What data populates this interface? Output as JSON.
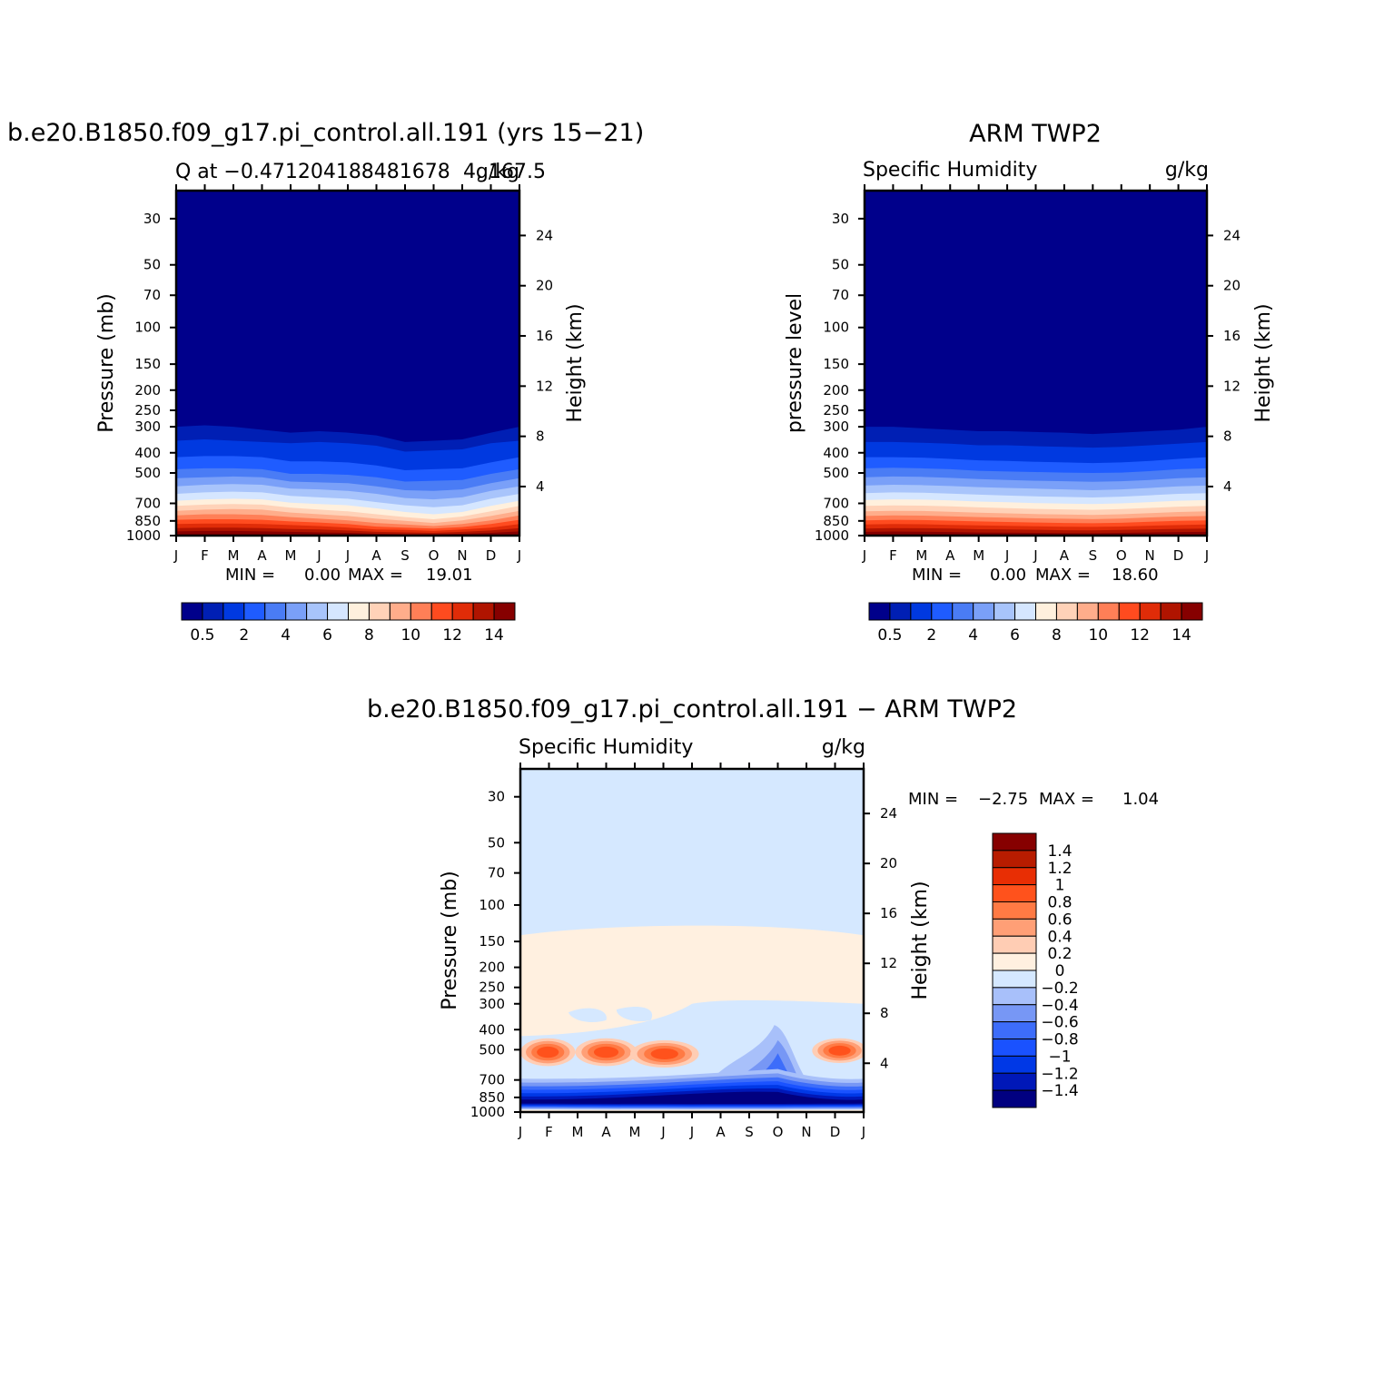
{
  "colors": {
    "absolute": [
      "#00008b",
      "#001fb4",
      "#0039e0",
      "#1f5cff",
      "#4a7cf5",
      "#7aa0f8",
      "#a8c4fb",
      "#d5e6ff",
      "#fff0dd",
      "#ffd2b8",
      "#ffad8b",
      "#ff7f57",
      "#ff4b1f",
      "#e02c08",
      "#b01400",
      "#860000"
    ],
    "difference": [
      "#010080",
      "#0018b8",
      "#0038e6",
      "#1a52ff",
      "#3d6dfa",
      "#7797f5",
      "#a8c0fa",
      "#d5e8ff",
      "#fff0e0",
      "#ffcdb4",
      "#ff9f76",
      "#ff7a44",
      "#ff521c",
      "#e82e04",
      "#b81c00",
      "#860000"
    ]
  },
  "chart_data": [
    {
      "type": "heatmap",
      "title": "b.e20.B1850.f09_g17.pi_control.all.191 (yrs 15−21)",
      "left_string": "Q at −0.471204188481678",
      "center_string": "4, 167.5",
      "right_string": "g/kg",
      "ylabel": "Pressure (mb)",
      "y2label": "Height (km)",
      "x_ticks": [
        "J",
        "F",
        "M",
        "A",
        "M",
        "J",
        "J",
        "A",
        "S",
        "O",
        "N",
        "D",
        "J"
      ],
      "y_ticks": [
        "30",
        "50",
        "70",
        "100",
        "150",
        "200",
        "250",
        "300",
        "400",
        "500",
        "700",
        "850",
        "1000"
      ],
      "y_tick_values": [
        30,
        50,
        70,
        100,
        150,
        200,
        250,
        300,
        400,
        500,
        700,
        850,
        1000
      ],
      "y2_ticks": [
        "24",
        "20",
        "16",
        "12",
        "8",
        "4"
      ],
      "y2_tick_values": [
        24,
        20,
        16,
        12,
        8,
        4
      ],
      "ylim": [
        1000,
        22
      ],
      "y_scale": "log",
      "min_label": "MIN =",
      "min_value": "0.00",
      "max_label": "MAX =",
      "max_value": "19.01",
      "colorbar_labels": [
        "0.5",
        "2",
        "4",
        "6",
        "8",
        "10",
        "12",
        "14"
      ],
      "months": [
        "J",
        "F",
        "M",
        "A",
        "M",
        "J",
        "J",
        "A",
        "S",
        "O",
        "N",
        "D",
        "J"
      ],
      "contour_levels_mb": {
        "0.5": [
          300,
          295,
          300,
          310,
          320,
          315,
          320,
          330,
          355,
          350,
          345,
          320,
          300
        ],
        "1": [
          350,
          345,
          350,
          355,
          360,
          355,
          360,
          370,
          395,
          390,
          385,
          360,
          350
        ],
        "2": [
          420,
          415,
          415,
          420,
          440,
          440,
          445,
          460,
          485,
          480,
          475,
          445,
          420
        ],
        "3": [
          480,
          475,
          475,
          480,
          505,
          505,
          510,
          525,
          550,
          545,
          540,
          505,
          480
        ],
        "4": [
          530,
          525,
          520,
          525,
          550,
          555,
          560,
          580,
          605,
          610,
          600,
          560,
          530
        ],
        "5": [
          580,
          570,
          565,
          570,
          595,
          600,
          610,
          630,
          660,
          670,
          655,
          610,
          580
        ],
        "6": [
          630,
          620,
          615,
          620,
          645,
          655,
          665,
          690,
          715,
          730,
          715,
          665,
          630
        ],
        "7": [
          680,
          670,
          665,
          670,
          695,
          705,
          715,
          740,
          770,
          790,
          770,
          720,
          680
        ],
        "8": [
          720,
          710,
          705,
          710,
          735,
          750,
          765,
          790,
          815,
          835,
          810,
          765,
          720
        ],
        "9": [
          760,
          750,
          745,
          750,
          775,
          790,
          805,
          830,
          850,
          870,
          845,
          805,
          760
        ],
        "10": [
          800,
          790,
          790,
          795,
          815,
          830,
          845,
          870,
          885,
          900,
          880,
          845,
          800
        ],
        "11": [
          840,
          835,
          835,
          840,
          855,
          865,
          880,
          905,
          915,
          925,
          910,
          880,
          840
        ],
        "12": [
          880,
          875,
          875,
          880,
          890,
          900,
          915,
          935,
          940,
          950,
          935,
          915,
          880
        ],
        "13": [
          920,
          915,
          915,
          920,
          930,
          935,
          945,
          960,
          965,
          970,
          960,
          945,
          920
        ],
        "14": [
          955,
          950,
          950,
          955,
          960,
          965,
          970,
          980,
          985,
          985,
          980,
          970,
          955
        ]
      }
    },
    {
      "type": "heatmap",
      "title": "ARM TWP2",
      "left_string": "Specific Humidity",
      "right_string": "g/kg",
      "ylabel": "pressure level",
      "y2label": "Height (km)",
      "x_ticks": [
        "J",
        "F",
        "M",
        "A",
        "M",
        "J",
        "J",
        "A",
        "S",
        "O",
        "N",
        "D",
        "J"
      ],
      "y_ticks": [
        "30",
        "50",
        "70",
        "100",
        "150",
        "200",
        "250",
        "300",
        "400",
        "500",
        "700",
        "850",
        "1000"
      ],
      "y_tick_values": [
        30,
        50,
        70,
        100,
        150,
        200,
        250,
        300,
        400,
        500,
        700,
        850,
        1000
      ],
      "y2_ticks": [
        "24",
        "20",
        "16",
        "12",
        "8",
        "4"
      ],
      "y2_tick_values": [
        24,
        20,
        16,
        12,
        8,
        4
      ],
      "ylim": [
        1000,
        22
      ],
      "y_scale": "log",
      "min_label": "MIN =",
      "min_value": "0.00",
      "max_label": "MAX =",
      "max_value": "18.60",
      "colorbar_labels": [
        "0.5",
        "2",
        "4",
        "6",
        "8",
        "10",
        "12",
        "14"
      ],
      "months": [
        "J",
        "F",
        "M",
        "A",
        "M",
        "J",
        "J",
        "A",
        "S",
        "O",
        "N",
        "D",
        "J"
      ],
      "contour_levels_mb": {
        "0.5": [
          300,
          300,
          305,
          310,
          315,
          315,
          318,
          320,
          325,
          320,
          315,
          310,
          300
        ],
        "1": [
          355,
          355,
          358,
          362,
          368,
          368,
          372,
          375,
          378,
          375,
          368,
          362,
          355
        ],
        "2": [
          420,
          420,
          422,
          428,
          435,
          438,
          442,
          445,
          448,
          445,
          438,
          428,
          420
        ],
        "3": [
          475,
          472,
          475,
          480,
          488,
          492,
          495,
          498,
          500,
          498,
          490,
          480,
          475
        ],
        "4": [
          525,
          520,
          522,
          528,
          535,
          540,
          545,
          548,
          552,
          548,
          540,
          530,
          525
        ],
        "5": [
          575,
          570,
          572,
          578,
          585,
          590,
          595,
          600,
          605,
          600,
          590,
          580,
          575
        ],
        "6": [
          625,
          620,
          622,
          628,
          636,
          642,
          648,
          652,
          656,
          650,
          640,
          630,
          625
        ],
        "7": [
          675,
          670,
          672,
          678,
          686,
          692,
          698,
          702,
          706,
          700,
          690,
          680,
          675
        ],
        "8": [
          720,
          716,
          718,
          724,
          732,
          738,
          744,
          748,
          752,
          746,
          736,
          726,
          720
        ],
        "9": [
          765,
          760,
          762,
          768,
          776,
          782,
          788,
          792,
          796,
          790,
          780,
          770,
          765
        ],
        "10": [
          805,
          800,
          802,
          808,
          815,
          820,
          826,
          830,
          834,
          828,
          818,
          810,
          805
        ],
        "11": [
          845,
          840,
          842,
          848,
          855,
          860,
          865,
          870,
          872,
          868,
          858,
          850,
          845
        ],
        "12": [
          885,
          880,
          882,
          888,
          894,
          898,
          902,
          906,
          908,
          904,
          896,
          890,
          885
        ],
        "13": [
          925,
          920,
          922,
          926,
          932,
          935,
          938,
          942,
          944,
          940,
          934,
          928,
          925
        ],
        "14": [
          960,
          956,
          958,
          962,
          966,
          968,
          970,
          972,
          974,
          970,
          966,
          962,
          960
        ]
      }
    },
    {
      "type": "heatmap",
      "title": "b.e20.B1850.f09_g17.pi_control.all.191 − ARM TWP2",
      "left_string": "Specific Humidity",
      "right_string": "g/kg",
      "ylabel": "Pressure (mb)",
      "y2label": "Height (km)",
      "x_ticks": [
        "J",
        "F",
        "M",
        "A",
        "M",
        "J",
        "J",
        "A",
        "S",
        "O",
        "N",
        "D",
        "J"
      ],
      "y_ticks": [
        "30",
        "50",
        "70",
        "100",
        "150",
        "200",
        "250",
        "300",
        "400",
        "500",
        "700",
        "850",
        "1000"
      ],
      "y_tick_values": [
        30,
        50,
        70,
        100,
        150,
        200,
        250,
        300,
        400,
        500,
        700,
        850,
        1000
      ],
      "y2_ticks": [
        "24",
        "20",
        "16",
        "12",
        "8",
        "4"
      ],
      "y2_tick_values": [
        24,
        20,
        16,
        12,
        8,
        4
      ],
      "ylim": [
        1000,
        22
      ],
      "y_scale": "log",
      "min_label": "MIN =",
      "min_value": "−2.75",
      "max_label": "MAX =",
      "max_value": "1.04",
      "colorbar_labels": [
        "1.4",
        "1.2",
        "1",
        "0.8",
        "0.6",
        "0.4",
        "0.2",
        "0",
        "−0.2",
        "−0.4",
        "−0.6",
        "−0.8",
        "−1",
        "−1.2",
        "−1.4"
      ],
      "months": [
        "J",
        "F",
        "M",
        "A",
        "M",
        "J",
        "J",
        "A",
        "S",
        "O",
        "N",
        "D",
        "J"
      ]
    }
  ]
}
